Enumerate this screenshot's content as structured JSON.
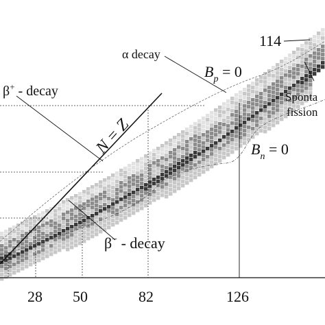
{
  "figure": {
    "labels": {
      "alpha_decay": "α decay",
      "beta_plus": "β",
      "beta_plus_sup": "+",
      "beta_plus_suffix": " - decay",
      "beta_minus": "β",
      "beta_minus_sup": "−",
      "beta_minus_suffix": " - decay",
      "spontaneous": "Sponta",
      "fission": "fission",
      "n_eq_z": "N = Z",
      "bp": "B",
      "bp_sub": "p",
      "bp_eq": " = 0",
      "bn": "B",
      "bn_sub": "n",
      "bn_eq": " = 0"
    },
    "magic_top": "114",
    "x_ticks": [
      "28",
      "50",
      "82",
      "126"
    ],
    "colors": {
      "cell_light": "#c8c8c8",
      "cell_mid": "#8c8c8c",
      "cell_dark": "#3a3a3a",
      "line": "#111111",
      "dotted": "#333333"
    }
  }
}
